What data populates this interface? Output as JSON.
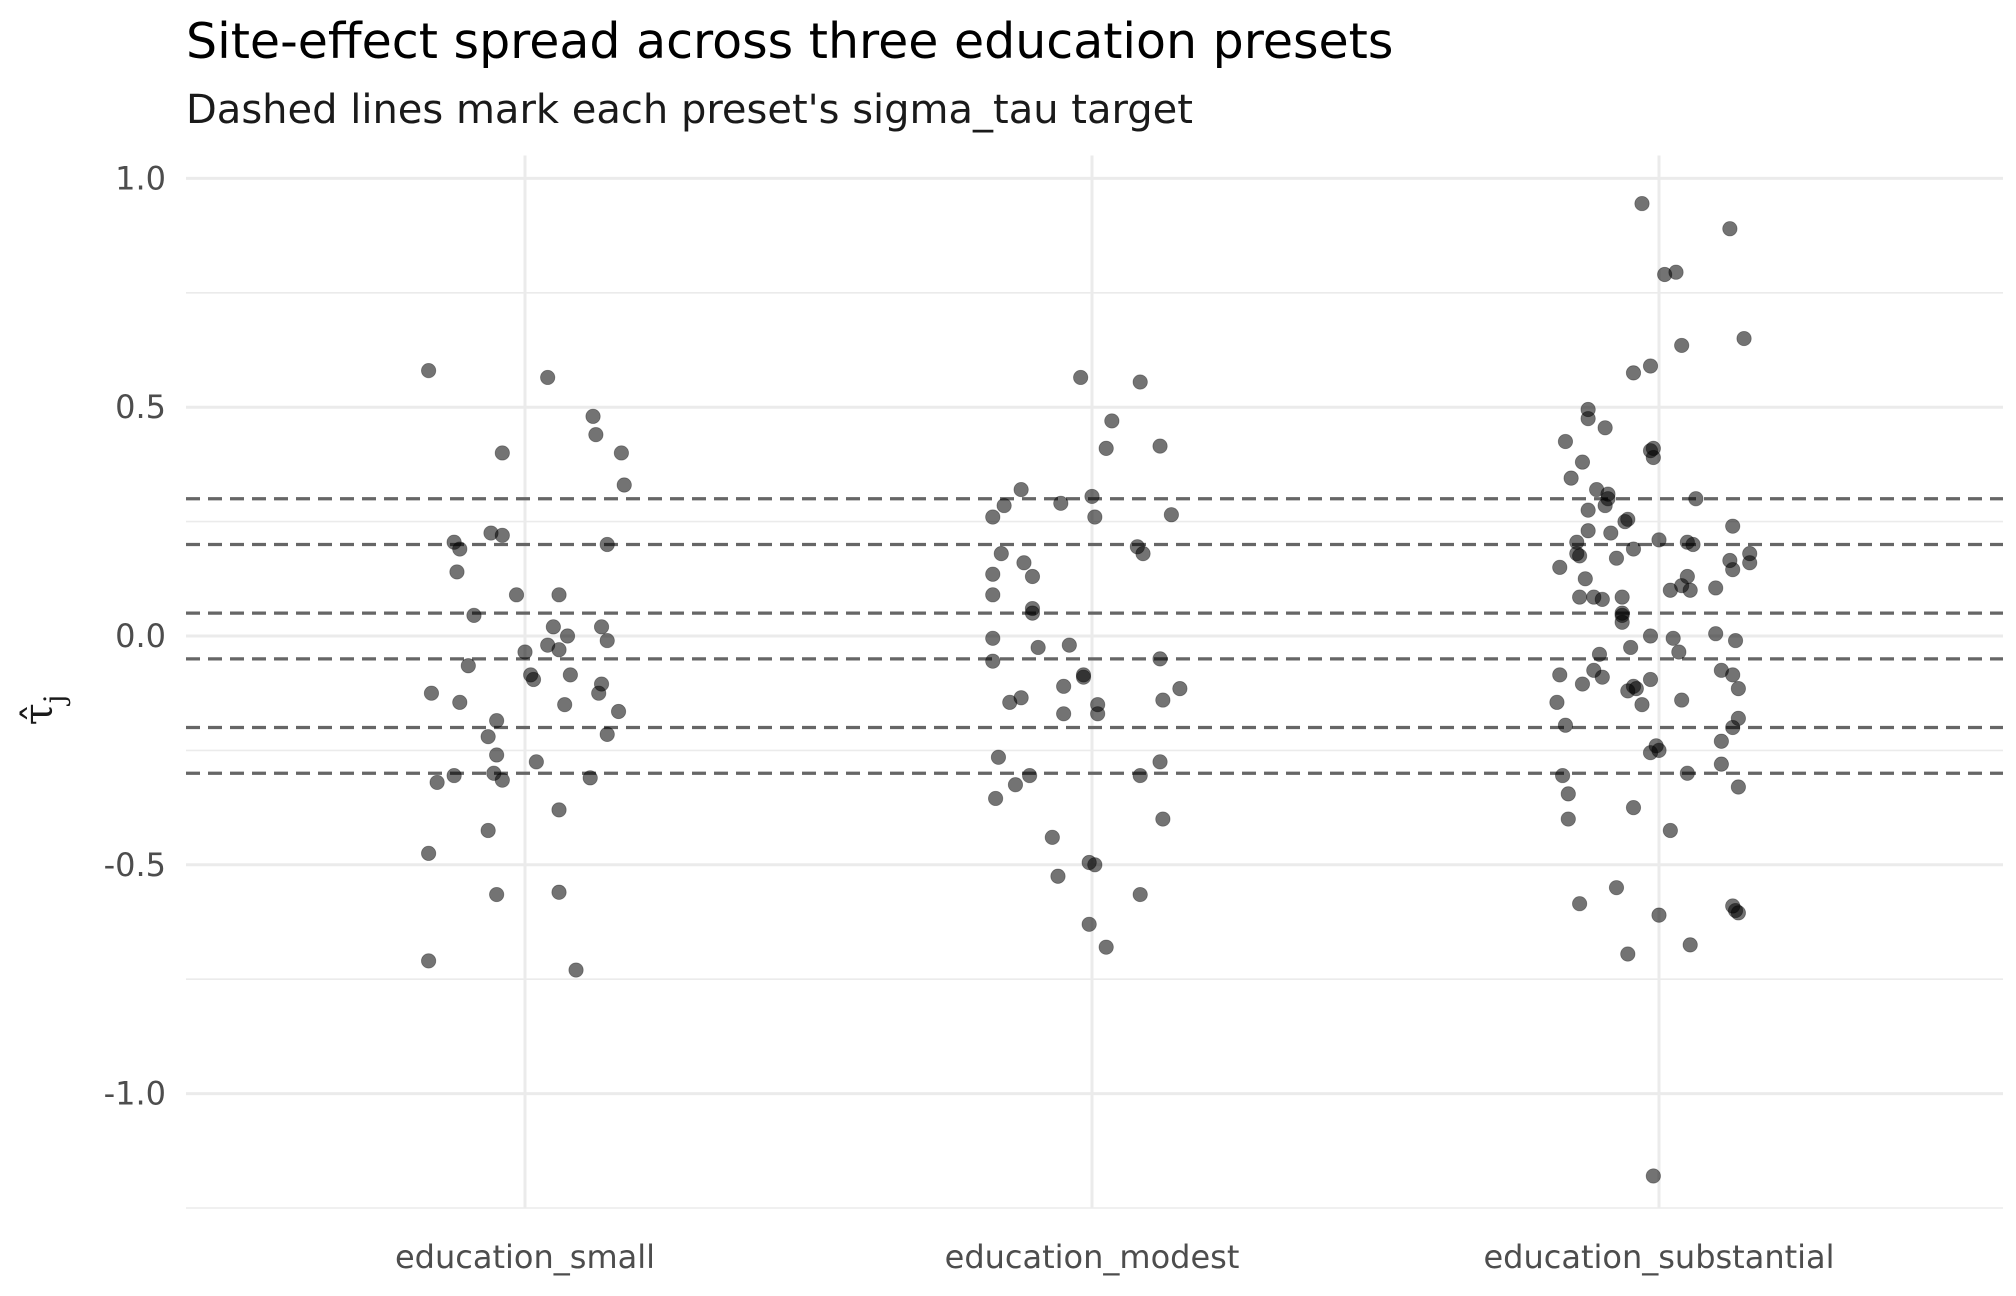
{
  "chart_data": {
    "type": "scatter",
    "title": "Site-effect spread across three education presets",
    "subtitle": "Dashed lines mark each preset's sigma_tau target",
    "xlabel": "",
    "ylabel": "τ̂",
    "ylabel_subscript": "j",
    "categories": [
      "education_small",
      "education_modest",
      "education_substantial"
    ],
    "ylim": [
      -1.25,
      1.05
    ],
    "y_ticks": [
      1.0,
      0.5,
      0.0,
      -0.5,
      -1.0
    ],
    "y_tick_labels": [
      "1.0",
      "0.5",
      "0.0",
      "-0.5",
      "-1.0"
    ],
    "grid": true,
    "reference_lines": [
      0.3,
      0.2,
      0.05,
      -0.05,
      -0.2,
      -0.3
    ],
    "point_color": "#000000",
    "point_alpha": 0.55,
    "line_color": "#666666",
    "points": [
      {
        "c": 0,
        "j": -0.17,
        "y": 0.58
      },
      {
        "c": 0,
        "j": 0.04,
        "y": 0.565
      },
      {
        "c": 0,
        "j": 0.12,
        "y": 0.48
      },
      {
        "c": 0,
        "j": 0.125,
        "y": 0.44
      },
      {
        "c": 0,
        "j": 0.17,
        "y": 0.4
      },
      {
        "c": 0,
        "j": -0.04,
        "y": 0.4
      },
      {
        "c": 0,
        "j": 0.175,
        "y": 0.33
      },
      {
        "c": 0,
        "j": -0.125,
        "y": 0.205
      },
      {
        "c": 0,
        "j": -0.06,
        "y": 0.225
      },
      {
        "c": 0,
        "j": -0.04,
        "y": 0.22
      },
      {
        "c": 0,
        "j": 0.145,
        "y": 0.2
      },
      {
        "c": 0,
        "j": -0.115,
        "y": 0.19
      },
      {
        "c": 0,
        "j": -0.12,
        "y": 0.14
      },
      {
        "c": 0,
        "j": -0.015,
        "y": 0.09
      },
      {
        "c": 0,
        "j": 0.06,
        "y": 0.09
      },
      {
        "c": 0,
        "j": -0.09,
        "y": 0.045
      },
      {
        "c": 0,
        "j": 0.05,
        "y": 0.02
      },
      {
        "c": 0,
        "j": 0.135,
        "y": 0.02
      },
      {
        "c": 0,
        "j": 0.075,
        "y": 0.0
      },
      {
        "c": 0,
        "j": 0.145,
        "y": -0.01
      },
      {
        "c": 0,
        "j": -0.1,
        "y": -0.065
      },
      {
        "c": 0,
        "j": 0.04,
        "y": -0.02
      },
      {
        "c": 0,
        "j": 0.06,
        "y": -0.03
      },
      {
        "c": 0,
        "j": 0.0,
        "y": -0.035
      },
      {
        "c": 0,
        "j": 0.01,
        "y": -0.085
      },
      {
        "c": 0,
        "j": 0.015,
        "y": -0.095
      },
      {
        "c": 0,
        "j": 0.08,
        "y": -0.085
      },
      {
        "c": 0,
        "j": 0.135,
        "y": -0.105
      },
      {
        "c": 0,
        "j": 0.13,
        "y": -0.125
      },
      {
        "c": 0,
        "j": -0.165,
        "y": -0.125
      },
      {
        "c": 0,
        "j": 0.07,
        "y": -0.15
      },
      {
        "c": 0,
        "j": -0.115,
        "y": -0.145
      },
      {
        "c": 0,
        "j": 0.165,
        "y": -0.165
      },
      {
        "c": 0,
        "j": -0.05,
        "y": -0.185
      },
      {
        "c": 0,
        "j": 0.145,
        "y": -0.215
      },
      {
        "c": 0,
        "j": -0.065,
        "y": -0.22
      },
      {
        "c": 0,
        "j": -0.05,
        "y": -0.26
      },
      {
        "c": 0,
        "j": 0.02,
        "y": -0.275
      },
      {
        "c": 0,
        "j": -0.055,
        "y": -0.3
      },
      {
        "c": 0,
        "j": -0.155,
        "y": -0.32
      },
      {
        "c": 0,
        "j": -0.125,
        "y": -0.305
      },
      {
        "c": 0,
        "j": -0.04,
        "y": -0.315
      },
      {
        "c": 0,
        "j": 0.115,
        "y": -0.31
      },
      {
        "c": 0,
        "j": 0.06,
        "y": -0.38
      },
      {
        "c": 0,
        "j": -0.065,
        "y": -0.425
      },
      {
        "c": 0,
        "j": -0.17,
        "y": -0.475
      },
      {
        "c": 0,
        "j": -0.05,
        "y": -0.565
      },
      {
        "c": 0,
        "j": 0.06,
        "y": -0.56
      },
      {
        "c": 0,
        "j": -0.17,
        "y": -0.71
      },
      {
        "c": 0,
        "j": 0.09,
        "y": -0.73
      },
      {
        "c": 1,
        "j": -0.02,
        "y": 0.565
      },
      {
        "c": 1,
        "j": 0.085,
        "y": 0.555
      },
      {
        "c": 1,
        "j": 0.035,
        "y": 0.47
      },
      {
        "c": 1,
        "j": 0.12,
        "y": 0.415
      },
      {
        "c": 1,
        "j": 0.025,
        "y": 0.41
      },
      {
        "c": 1,
        "j": -0.125,
        "y": 0.32
      },
      {
        "c": 1,
        "j": 0.0,
        "y": 0.305
      },
      {
        "c": 1,
        "j": -0.055,
        "y": 0.29
      },
      {
        "c": 1,
        "j": -0.155,
        "y": 0.285
      },
      {
        "c": 1,
        "j": -0.175,
        "y": 0.26
      },
      {
        "c": 1,
        "j": 0.005,
        "y": 0.26
      },
      {
        "c": 1,
        "j": 0.14,
        "y": 0.265
      },
      {
        "c": 1,
        "j": 0.08,
        "y": 0.195
      },
      {
        "c": 1,
        "j": -0.16,
        "y": 0.18
      },
      {
        "c": 1,
        "j": 0.09,
        "y": 0.18
      },
      {
        "c": 1,
        "j": -0.12,
        "y": 0.16
      },
      {
        "c": 1,
        "j": -0.175,
        "y": 0.135
      },
      {
        "c": 1,
        "j": -0.105,
        "y": 0.13
      },
      {
        "c": 1,
        "j": -0.175,
        "y": 0.09
      },
      {
        "c": 1,
        "j": -0.105,
        "y": 0.06
      },
      {
        "c": 1,
        "j": -0.105,
        "y": 0.05
      },
      {
        "c": 1,
        "j": -0.175,
        "y": -0.005
      },
      {
        "c": 1,
        "j": -0.04,
        "y": -0.02
      },
      {
        "c": 1,
        "j": -0.095,
        "y": -0.025
      },
      {
        "c": 1,
        "j": -0.175,
        "y": -0.055
      },
      {
        "c": 1,
        "j": 0.12,
        "y": -0.05
      },
      {
        "c": 1,
        "j": -0.015,
        "y": -0.085
      },
      {
        "c": 1,
        "j": -0.015,
        "y": -0.09
      },
      {
        "c": 1,
        "j": -0.05,
        "y": -0.11
      },
      {
        "c": 1,
        "j": 0.155,
        "y": -0.115
      },
      {
        "c": 1,
        "j": -0.125,
        "y": -0.135
      },
      {
        "c": 1,
        "j": -0.145,
        "y": -0.145
      },
      {
        "c": 1,
        "j": 0.01,
        "y": -0.15
      },
      {
        "c": 1,
        "j": 0.125,
        "y": -0.14
      },
      {
        "c": 1,
        "j": 0.01,
        "y": -0.17
      },
      {
        "c": 1,
        "j": -0.05,
        "y": -0.17
      },
      {
        "c": 1,
        "j": -0.165,
        "y": -0.265
      },
      {
        "c": 1,
        "j": 0.12,
        "y": -0.275
      },
      {
        "c": 1,
        "j": 0.085,
        "y": -0.305
      },
      {
        "c": 1,
        "j": -0.11,
        "y": -0.305
      },
      {
        "c": 1,
        "j": -0.135,
        "y": -0.325
      },
      {
        "c": 1,
        "j": -0.17,
        "y": -0.355
      },
      {
        "c": 1,
        "j": 0.125,
        "y": -0.4
      },
      {
        "c": 1,
        "j": -0.07,
        "y": -0.44
      },
      {
        "c": 1,
        "j": -0.005,
        "y": -0.495
      },
      {
        "c": 1,
        "j": 0.005,
        "y": -0.5
      },
      {
        "c": 1,
        "j": -0.06,
        "y": -0.525
      },
      {
        "c": 1,
        "j": 0.085,
        "y": -0.565
      },
      {
        "c": 1,
        "j": -0.005,
        "y": -0.63
      },
      {
        "c": 1,
        "j": 0.025,
        "y": -0.68
      },
      {
        "c": 2,
        "j": -0.03,
        "y": 0.945
      },
      {
        "c": 2,
        "j": 0.125,
        "y": 0.89
      },
      {
        "c": 2,
        "j": 0.01,
        "y": 0.79
      },
      {
        "c": 2,
        "j": 0.03,
        "y": 0.795
      },
      {
        "c": 2,
        "j": 0.15,
        "y": 0.65
      },
      {
        "c": 2,
        "j": 0.04,
        "y": 0.635
      },
      {
        "c": 2,
        "j": -0.015,
        "y": 0.59
      },
      {
        "c": 2,
        "j": -0.045,
        "y": 0.575
      },
      {
        "c": 2,
        "j": -0.165,
        "y": 0.425
      },
      {
        "c": 2,
        "j": -0.125,
        "y": 0.495
      },
      {
        "c": 2,
        "j": -0.125,
        "y": 0.475
      },
      {
        "c": 2,
        "j": -0.095,
        "y": 0.455
      },
      {
        "c": 2,
        "j": -0.135,
        "y": 0.38
      },
      {
        "c": 2,
        "j": -0.155,
        "y": 0.345
      },
      {
        "c": 2,
        "j": -0.01,
        "y": 0.41
      },
      {
        "c": 2,
        "j": -0.015,
        "y": 0.405
      },
      {
        "c": 2,
        "j": -0.01,
        "y": 0.39
      },
      {
        "c": 2,
        "j": -0.11,
        "y": 0.32
      },
      {
        "c": 2,
        "j": -0.09,
        "y": 0.31
      },
      {
        "c": 2,
        "j": -0.09,
        "y": 0.3
      },
      {
        "c": 2,
        "j": 0.065,
        "y": 0.3
      },
      {
        "c": 2,
        "j": -0.095,
        "y": 0.285
      },
      {
        "c": 2,
        "j": -0.125,
        "y": 0.275
      },
      {
        "c": 2,
        "j": -0.055,
        "y": 0.255
      },
      {
        "c": 2,
        "j": -0.06,
        "y": 0.25
      },
      {
        "c": 2,
        "j": -0.125,
        "y": 0.23
      },
      {
        "c": 2,
        "j": -0.085,
        "y": 0.225
      },
      {
        "c": 2,
        "j": 0.13,
        "y": 0.24
      },
      {
        "c": 2,
        "j": 0.05,
        "y": 0.205
      },
      {
        "c": 2,
        "j": -0.045,
        "y": 0.19
      },
      {
        "c": 2,
        "j": -0.145,
        "y": 0.205
      },
      {
        "c": 2,
        "j": 0.0,
        "y": 0.21
      },
      {
        "c": 2,
        "j": 0.06,
        "y": 0.2
      },
      {
        "c": 2,
        "j": -0.075,
        "y": 0.17
      },
      {
        "c": 2,
        "j": -0.145,
        "y": 0.18
      },
      {
        "c": 2,
        "j": -0.14,
        "y": 0.175
      },
      {
        "c": 2,
        "j": 0.16,
        "y": 0.18
      },
      {
        "c": 2,
        "j": 0.16,
        "y": 0.16
      },
      {
        "c": 2,
        "j": 0.125,
        "y": 0.165
      },
      {
        "c": 2,
        "j": -0.13,
        "y": 0.125
      },
      {
        "c": 2,
        "j": 0.13,
        "y": 0.145
      },
      {
        "c": 2,
        "j": -0.175,
        "y": 0.15
      },
      {
        "c": 2,
        "j": 0.05,
        "y": 0.13
      },
      {
        "c": 2,
        "j": 0.055,
        "y": 0.1
      },
      {
        "c": 2,
        "j": 0.02,
        "y": 0.1
      },
      {
        "c": 2,
        "j": 0.04,
        "y": 0.11
      },
      {
        "c": 2,
        "j": 0.1,
        "y": 0.105
      },
      {
        "c": 2,
        "j": -0.115,
        "y": 0.085
      },
      {
        "c": 2,
        "j": -0.14,
        "y": 0.085
      },
      {
        "c": 2,
        "j": -0.1,
        "y": 0.08
      },
      {
        "c": 2,
        "j": -0.065,
        "y": 0.085
      },
      {
        "c": 2,
        "j": -0.065,
        "y": 0.05
      },
      {
        "c": 2,
        "j": -0.065,
        "y": 0.045
      },
      {
        "c": 2,
        "j": -0.065,
        "y": 0.03
      },
      {
        "c": 2,
        "j": 0.1,
        "y": 0.005
      },
      {
        "c": 2,
        "j": -0.015,
        "y": 0.0
      },
      {
        "c": 2,
        "j": 0.025,
        "y": -0.005
      },
      {
        "c": 2,
        "j": 0.135,
        "y": -0.01
      },
      {
        "c": 2,
        "j": -0.05,
        "y": -0.025
      },
      {
        "c": 2,
        "j": -0.105,
        "y": -0.04
      },
      {
        "c": 2,
        "j": 0.035,
        "y": -0.035
      },
      {
        "c": 2,
        "j": 0.11,
        "y": -0.075
      },
      {
        "c": 2,
        "j": 0.13,
        "y": -0.085
      },
      {
        "c": 2,
        "j": -0.115,
        "y": -0.075
      },
      {
        "c": 2,
        "j": -0.1,
        "y": -0.09
      },
      {
        "c": 2,
        "j": -0.175,
        "y": -0.085
      },
      {
        "c": 2,
        "j": -0.015,
        "y": -0.095
      },
      {
        "c": 2,
        "j": -0.135,
        "y": -0.105
      },
      {
        "c": 2,
        "j": -0.045,
        "y": -0.11
      },
      {
        "c": 2,
        "j": -0.04,
        "y": -0.115
      },
      {
        "c": 2,
        "j": 0.14,
        "y": -0.115
      },
      {
        "c": 2,
        "j": -0.055,
        "y": -0.12
      },
      {
        "c": 2,
        "j": -0.03,
        "y": -0.15
      },
      {
        "c": 2,
        "j": 0.04,
        "y": -0.14
      },
      {
        "c": 2,
        "j": -0.18,
        "y": -0.145
      },
      {
        "c": 2,
        "j": 0.13,
        "y": -0.2
      },
      {
        "c": 2,
        "j": 0.14,
        "y": -0.18
      },
      {
        "c": 2,
        "j": -0.165,
        "y": -0.195
      },
      {
        "c": 2,
        "j": 0.11,
        "y": -0.23
      },
      {
        "c": 2,
        "j": -0.005,
        "y": -0.24
      },
      {
        "c": 2,
        "j": 0.0,
        "y": -0.25
      },
      {
        "c": 2,
        "j": -0.015,
        "y": -0.255
      },
      {
        "c": 2,
        "j": 0.11,
        "y": -0.28
      },
      {
        "c": 2,
        "j": -0.17,
        "y": -0.305
      },
      {
        "c": 2,
        "j": 0.05,
        "y": -0.3
      },
      {
        "c": 2,
        "j": 0.14,
        "y": -0.33
      },
      {
        "c": 2,
        "j": -0.16,
        "y": -0.345
      },
      {
        "c": 2,
        "j": -0.045,
        "y": -0.375
      },
      {
        "c": 2,
        "j": -0.16,
        "y": -0.4
      },
      {
        "c": 2,
        "j": 0.02,
        "y": -0.425
      },
      {
        "c": 2,
        "j": -0.075,
        "y": -0.55
      },
      {
        "c": 2,
        "j": -0.14,
        "y": -0.585
      },
      {
        "c": 2,
        "j": 0.13,
        "y": -0.59
      },
      {
        "c": 2,
        "j": 0.135,
        "y": -0.6
      },
      {
        "c": 2,
        "j": 0.14,
        "y": -0.605
      },
      {
        "c": 2,
        "j": 0.0,
        "y": -0.61
      },
      {
        "c": 2,
        "j": 0.055,
        "y": -0.675
      },
      {
        "c": 2,
        "j": -0.055,
        "y": -0.695
      },
      {
        "c": 2,
        "j": -0.01,
        "y": -1.18
      }
    ]
  }
}
